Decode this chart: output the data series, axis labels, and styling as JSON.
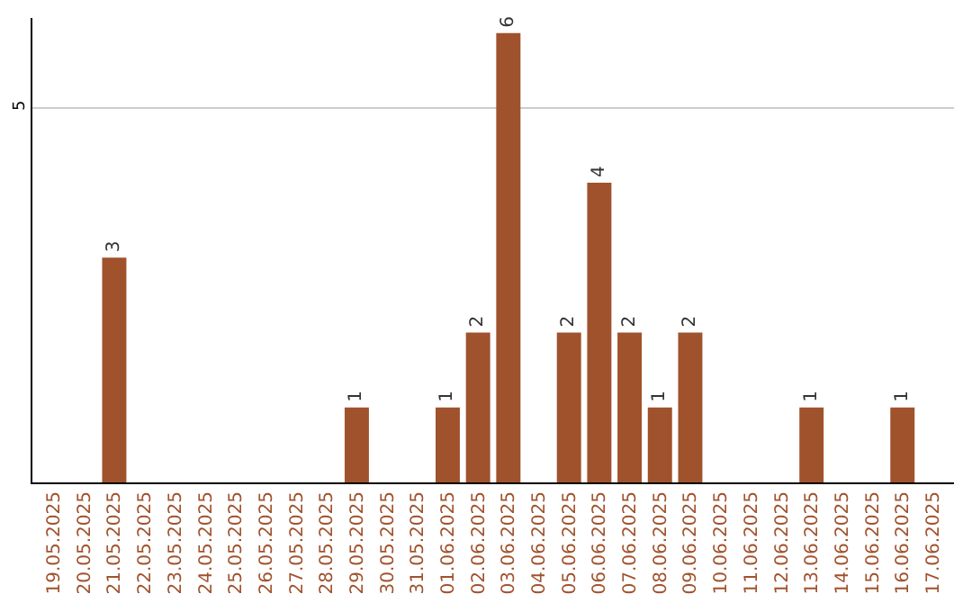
{
  "chart_data": {
    "type": "bar",
    "categories": [
      "19.05.2025",
      "20.05.2025",
      "21.05.2025",
      "22.05.2025",
      "23.05.2025",
      "24.05.2025",
      "25.05.2025",
      "26.05.2025",
      "27.05.2025",
      "28.05.2025",
      "29.05.2025",
      "30.05.2025",
      "31.05.2025",
      "01.06.2025",
      "02.06.2025",
      "03.06.2025",
      "04.06.2025",
      "05.06.2025",
      "06.06.2025",
      "07.06.2025",
      "08.06.2025",
      "09.06.2025",
      "10.06.2025",
      "11.06.2025",
      "12.06.2025",
      "13.06.2025",
      "14.06.2025",
      "15.06.2025",
      "16.06.2025",
      "17.06.2025"
    ],
    "values": [
      null,
      null,
      3,
      null,
      null,
      null,
      null,
      null,
      null,
      null,
      1,
      null,
      null,
      1,
      2,
      6,
      null,
      2,
      4,
      2,
      1,
      2,
      null,
      null,
      null,
      1,
      null,
      null,
      1,
      null
    ],
    "color": "#a0522d",
    "ylim": [
      0,
      6.2
    ],
    "yticks": [
      5
    ],
    "grid": "y",
    "data_labels": true
  }
}
